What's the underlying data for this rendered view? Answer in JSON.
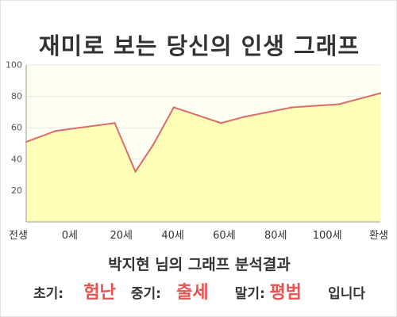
{
  "title": "재미로 보는 당신의 인생 그래프",
  "chart_data": {
    "type": "area",
    "x_tick_labels": [
      "전생",
      "0세",
      "20세",
      "40세",
      "60세",
      "80세",
      "100세",
      "환생"
    ],
    "y_ticks": [
      20,
      40,
      60,
      80,
      100
    ],
    "ylim": [
      0,
      100
    ],
    "grid": true,
    "x": [
      -10,
      0,
      20,
      27,
      33,
      40,
      48,
      56,
      64,
      80,
      96,
      110
    ],
    "values": [
      51,
      58,
      63,
      32,
      49,
      73,
      68,
      63,
      67,
      73,
      75,
      82
    ],
    "colors": {
      "fill": "#ffffb8",
      "line": "#de6b6b",
      "background": "#fffff2",
      "grid": "#e6e6e6"
    }
  },
  "summary": "박지현 님의 그래프 분석결과",
  "result": {
    "early_label": "초기:",
    "early_value": "험난",
    "middle_label": "중기:",
    "middle_value": "출세",
    "late_label": "말기:",
    "late_value": "평범",
    "ending": "입니다"
  }
}
